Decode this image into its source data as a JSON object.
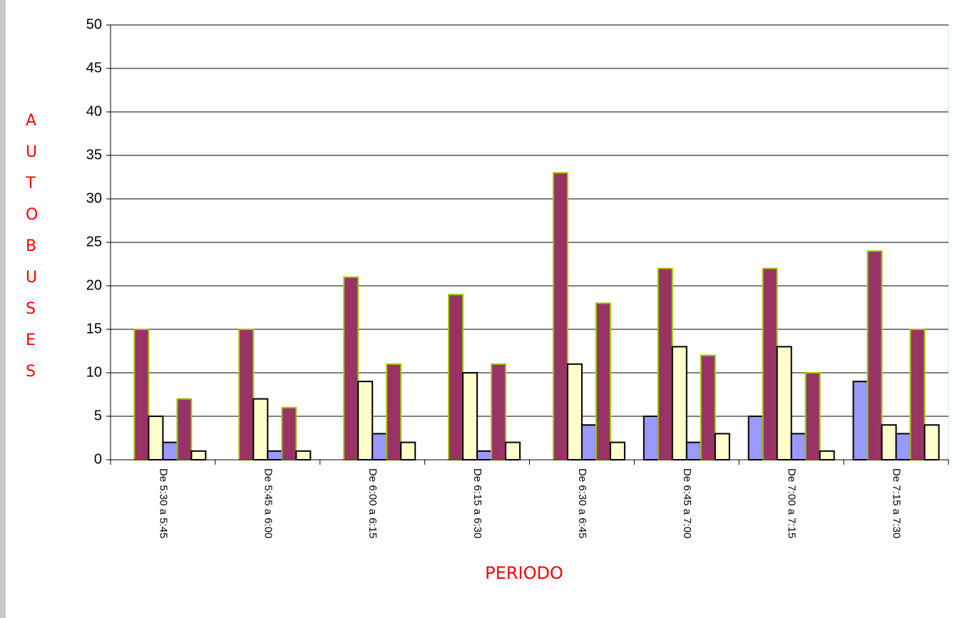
{
  "chart_data": {
    "type": "bar",
    "x_label": "PERIODO",
    "y_label": "AUTOBUSES",
    "categories": [
      "De 5:30 a 5:45",
      "De 5:45 a 6:00",
      "De 6:00 a 6:15",
      "De 6:15 a 6:30",
      "De 6:30 a 6:45",
      "De 6:45 a 7:00",
      "De 7:00 a 7:15",
      "De 7:15 a 7:30"
    ],
    "series": [
      {
        "color": "#9999ff",
        "border": "#000000",
        "values": [
          0,
          0,
          0,
          0,
          0,
          5,
          5,
          9
        ]
      },
      {
        "color": "#993366",
        "border": "#99cc00",
        "values": [
          15,
          15,
          21,
          19,
          33,
          22,
          22,
          24
        ]
      },
      {
        "color": "#ffffcc",
        "border": "#000000",
        "values": [
          5,
          7,
          9,
          10,
          11,
          13,
          13,
          4
        ]
      },
      {
        "color": "#9999ff",
        "border": "#000000",
        "values": [
          2,
          1,
          3,
          1,
          4,
          2,
          3,
          3
        ]
      },
      {
        "color": "#993366",
        "border": "#99cc00",
        "values": [
          7,
          6,
          11,
          11,
          18,
          12,
          10,
          15
        ]
      },
      {
        "color": "#ffffcc",
        "border": "#000000",
        "values": [
          1,
          1,
          2,
          2,
          2,
          3,
          1,
          4
        ]
      }
    ],
    "ylim": [
      0,
      50
    ],
    "yticks": [
      0,
      5,
      10,
      15,
      20,
      25,
      30,
      35,
      40,
      45,
      50
    ],
    "grid": true
  }
}
